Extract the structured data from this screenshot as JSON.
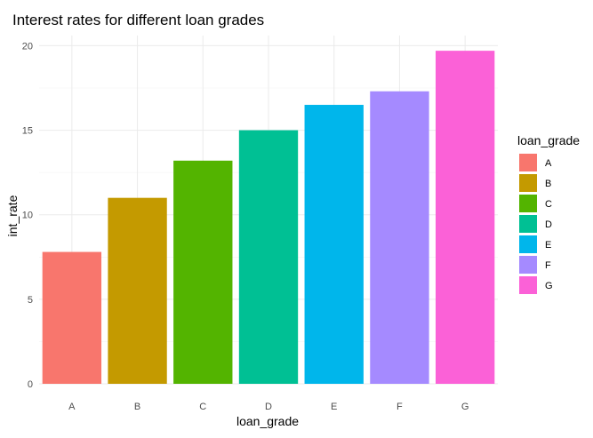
{
  "chart_data": {
    "type": "bar",
    "title": "Interest rates for different loan grades",
    "xlabel": "loan_grade",
    "ylabel": "int_rate",
    "categories": [
      "A",
      "B",
      "C",
      "D",
      "E",
      "F",
      "G"
    ],
    "values": [
      7.8,
      11.0,
      13.2,
      15.0,
      16.5,
      17.3,
      19.7
    ],
    "ylim": [
      0,
      20.6
    ],
    "yticks": [
      0,
      5,
      10,
      15,
      20
    ],
    "ytick_labels": [
      "0",
      "5",
      "10",
      "15",
      "20"
    ],
    "grid": true,
    "legend": {
      "title": "loan_grade",
      "position": "right",
      "entries": [
        "A",
        "B",
        "C",
        "D",
        "E",
        "F",
        "G"
      ]
    },
    "colors": [
      "#F8766D",
      "#C49A00",
      "#53B400",
      "#00C094",
      "#00B6EB",
      "#A58AFF",
      "#FB61D7"
    ]
  }
}
